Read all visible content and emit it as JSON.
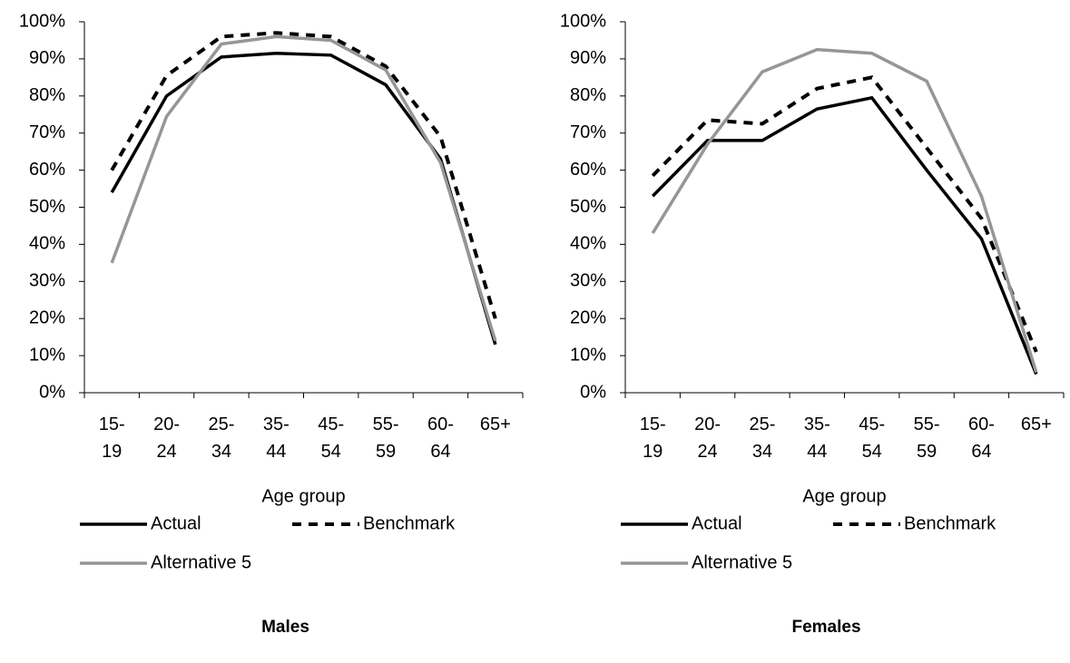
{
  "chart_data": [
    {
      "type": "line",
      "title": "Males",
      "x_label": "Age group",
      "categories": [
        "15- 19",
        "20- 24",
        "25- 34",
        "35- 44",
        "45- 54",
        "55- 59",
        "60- 64",
        "65+"
      ],
      "ylim": [
        0,
        100
      ],
      "yticks": [
        {
          "value": 0,
          "label": "0%"
        },
        {
          "value": 10,
          "label": "10%"
        },
        {
          "value": 20,
          "label": "20%"
        },
        {
          "value": 30,
          "label": "30%"
        },
        {
          "value": 40,
          "label": "40%"
        },
        {
          "value": 50,
          "label": "50%"
        },
        {
          "value": 60,
          "label": "60%"
        },
        {
          "value": 70,
          "label": "70%"
        },
        {
          "value": 80,
          "label": "80%"
        },
        {
          "value": 90,
          "label": "90%"
        },
        {
          "value": 100,
          "label": "100%"
        }
      ],
      "legend": "bottom",
      "series": [
        {
          "name": "Actual",
          "color": "#000000",
          "dash": "solid",
          "values": [
            54,
            80,
            90.5,
            91.5,
            91,
            83,
            63,
            13
          ]
        },
        {
          "name": "Benchmark",
          "color": "#000000",
          "dash": "dashed",
          "values": [
            60,
            85.5,
            96,
            97,
            96,
            88,
            69,
            20
          ]
        },
        {
          "name": "Alternative 5",
          "color": "#969696",
          "dash": "solid",
          "values": [
            35,
            74.5,
            94,
            96,
            95,
            87,
            62,
            14
          ]
        }
      ]
    },
    {
      "type": "line",
      "title": "Females",
      "x_label": "Age group",
      "categories": [
        "15- 19",
        "20- 24",
        "25- 34",
        "35- 44",
        "45- 54",
        "55- 59",
        "60- 64",
        "65+"
      ],
      "ylim": [
        0,
        100
      ],
      "yticks": [
        {
          "value": 0,
          "label": "0%"
        },
        {
          "value": 10,
          "label": "10%"
        },
        {
          "value": 20,
          "label": "20%"
        },
        {
          "value": 30,
          "label": "30%"
        },
        {
          "value": 40,
          "label": "40%"
        },
        {
          "value": 50,
          "label": "50%"
        },
        {
          "value": 60,
          "label": "60%"
        },
        {
          "value": 70,
          "label": "70%"
        },
        {
          "value": 80,
          "label": "80%"
        },
        {
          "value": 90,
          "label": "90%"
        },
        {
          "value": 100,
          "label": "100%"
        }
      ],
      "legend": "bottom",
      "series": [
        {
          "name": "Actual",
          "color": "#000000",
          "dash": "solid",
          "values": [
            53,
            68,
            68,
            76.5,
            79.5,
            60,
            41.5,
            5
          ]
        },
        {
          "name": "Benchmark",
          "color": "#000000",
          "dash": "dashed",
          "values": [
            58.5,
            73.5,
            72.5,
            82,
            85,
            66,
            47,
            11
          ]
        },
        {
          "name": "Alternative 5",
          "color": "#969696",
          "dash": "solid",
          "values": [
            43,
            67,
            86.5,
            92.5,
            91.5,
            84,
            53,
            5.5
          ]
        }
      ]
    }
  ]
}
